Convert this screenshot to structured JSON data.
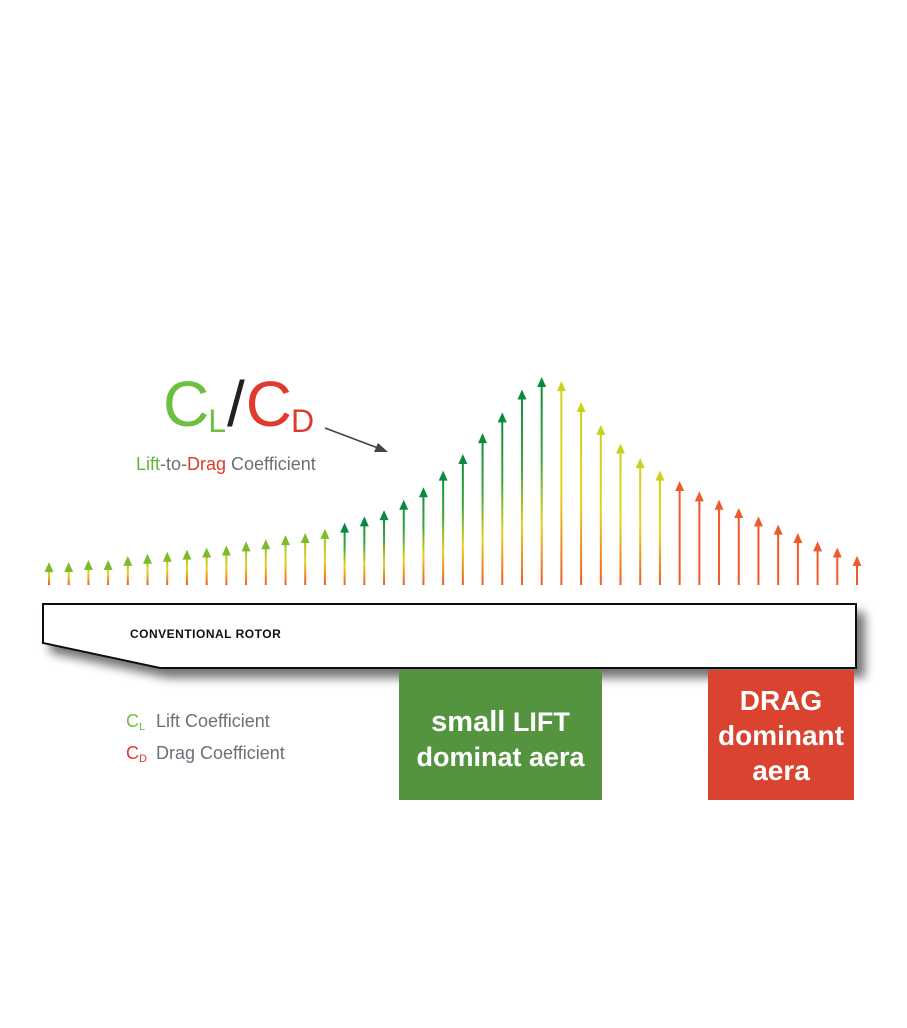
{
  "title": {
    "cl_letter": "C",
    "cl_sub": "L",
    "slash": "/",
    "cd_letter": "C",
    "cd_sub": "D"
  },
  "subtitle": {
    "lift": "Lift",
    "sep": "-to-",
    "drag": "Drag",
    "rest": " Coefficient"
  },
  "rotor_label": "CONVENTIONAL ROTOR",
  "legend": [
    {
      "symbol": "C",
      "sub": "L",
      "text": "Lift Coefficient"
    },
    {
      "symbol": "C",
      "sub": "D",
      "text": "Drag Coefficient"
    }
  ],
  "zones": {
    "lift": {
      "line1_bold": "small",
      "line1_rest": " LIFT",
      "line2": "dominat aera"
    },
    "drag": {
      "line1": "DRAG",
      "line2": "dominant",
      "line3": "aera"
    }
  },
  "colors": {
    "lift_green": "#6cbf3f",
    "drag_red": "#e03a2d",
    "arrow_dark_green": "#0a8a3e",
    "arrow_yellow": "#e8d21a",
    "arrow_orange": "#f0582a",
    "zone_lift_bg": "#55943f",
    "zone_drag_bg": "#d9432f",
    "muted_text": "#6b6f78"
  },
  "arrows": {
    "count": 42,
    "relative_heights": [
      0.11,
      0.11,
      0.12,
      0.12,
      0.14,
      0.15,
      0.16,
      0.17,
      0.18,
      0.19,
      0.21,
      0.22,
      0.24,
      0.25,
      0.27,
      0.3,
      0.33,
      0.36,
      0.41,
      0.47,
      0.55,
      0.63,
      0.73,
      0.83,
      0.94,
      1.0,
      0.98,
      0.88,
      0.77,
      0.68,
      0.61,
      0.55,
      0.5,
      0.45,
      0.41,
      0.37,
      0.33,
      0.29,
      0.25,
      0.21,
      0.18,
      0.14
    ]
  }
}
